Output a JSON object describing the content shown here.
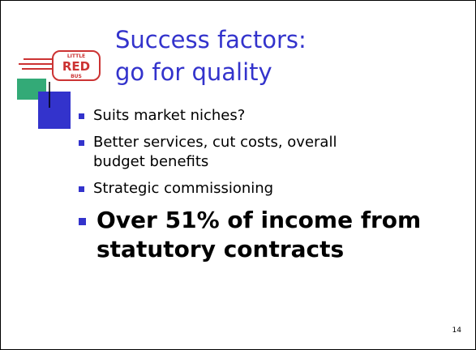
{
  "slide": {
    "title_lines": [
      "Success factors:",
      "go for quality"
    ],
    "logo": {
      "top": "LITTLE",
      "main": "RED",
      "bottom": "BUS"
    },
    "bullets": [
      {
        "lines": [
          "Suits market niches?"
        ],
        "emphasis": false
      },
      {
        "lines": [
          "Better services, cut costs, overall",
          "budget benefits"
        ],
        "emphasis": false
      },
      {
        "lines": [
          "Strategic commissioning"
        ],
        "emphasis": false
      },
      {
        "lines": [
          "Over 51% of income from",
          "statutory contracts"
        ],
        "emphasis": true
      }
    ],
    "page_number": "14"
  }
}
